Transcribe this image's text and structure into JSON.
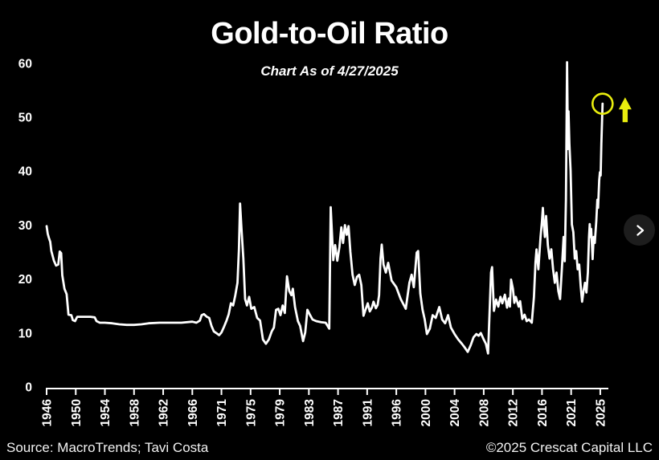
{
  "header": {
    "title": "Gold-to-Oil Ratio",
    "subtitle": "Chart As of 4/27/2025"
  },
  "footer": {
    "source": "Source: MacroTrends; Tavi Costa",
    "copyright": "©2025 Crescat Capital LLC"
  },
  "carousel": {
    "next_button": "chevron-right"
  },
  "colors": {
    "background": "#000000",
    "line": "#ffffff",
    "text": "#ffffff",
    "highlight": "#e9ed0e"
  },
  "chart_data": {
    "type": "line",
    "title": "Gold-to-Oil Ratio",
    "subtitle": "Chart As of 4/27/2025",
    "xlabel": "",
    "ylabel": "",
    "ylim": [
      0,
      60
    ],
    "y_ticks": [
      0,
      10,
      20,
      30,
      40,
      50,
      60
    ],
    "x_tick_labels": [
      "1946",
      "1950",
      "1954",
      "1958",
      "1962",
      "1966",
      "1971",
      "1975",
      "1979",
      "1983",
      "1987",
      "1991",
      "1996",
      "2000",
      "2004",
      "2008",
      "2012",
      "2016",
      "2021",
      "2025"
    ],
    "x_tick_years": [
      1946,
      1950,
      1954,
      1958,
      1962,
      1966,
      1971,
      1975,
      1979,
      1983,
      1987,
      1991,
      1996,
      2000,
      2004,
      2008,
      2012,
      2016,
      2021,
      2025
    ],
    "grid": false,
    "legend": null,
    "line_color": "#ffffff",
    "annotation": {
      "circled_last_point": true,
      "up_arrow": true,
      "color": "#e9ed0e",
      "last_value": 52.5,
      "as_of": "4/27/2025"
    },
    "series": [
      {
        "name": "gold-to-oil-ratio",
        "points": [
          [
            1946.0,
            29.8
          ],
          [
            1946.15,
            28.4
          ],
          [
            1946.3,
            27.7
          ],
          [
            1946.5,
            26.9
          ],
          [
            1946.65,
            25.2
          ],
          [
            1947.0,
            23.4
          ],
          [
            1947.3,
            22.5
          ],
          [
            1947.6,
            22.7
          ],
          [
            1947.8,
            25.1
          ],
          [
            1948.0,
            24.8
          ],
          [
            1948.15,
            20.7
          ],
          [
            1948.45,
            18.2
          ],
          [
            1948.75,
            17.2
          ],
          [
            1949.0,
            13.4
          ],
          [
            1949.4,
            13.3
          ],
          [
            1949.6,
            12.4
          ],
          [
            1949.9,
            12.2
          ],
          [
            1950.2,
            13.0
          ],
          [
            1950.7,
            13.0
          ],
          [
            1951.3,
            13.0
          ],
          [
            1952.0,
            13.0
          ],
          [
            1952.6,
            12.9
          ],
          [
            1952.85,
            12.2
          ],
          [
            1953.3,
            11.9
          ],
          [
            1954.0,
            11.9
          ],
          [
            1955.0,
            11.8
          ],
          [
            1956.0,
            11.6
          ],
          [
            1957.0,
            11.5
          ],
          [
            1958.0,
            11.5
          ],
          [
            1959.0,
            11.6
          ],
          [
            1960.0,
            11.8
          ],
          [
            1961.5,
            11.9
          ],
          [
            1963.0,
            11.9
          ],
          [
            1964.5,
            11.9
          ],
          [
            1966.0,
            12.1
          ],
          [
            1966.7,
            11.9
          ],
          [
            1967.3,
            12.3
          ],
          [
            1967.6,
            13.3
          ],
          [
            1968.0,
            13.5
          ],
          [
            1968.5,
            13.0
          ],
          [
            1968.9,
            12.8
          ],
          [
            1969.3,
            11.3
          ],
          [
            1969.7,
            10.3
          ],
          [
            1970.1,
            10.0
          ],
          [
            1970.6,
            9.6
          ],
          [
            1971.0,
            10.1
          ],
          [
            1971.3,
            11.0
          ],
          [
            1971.7,
            12.3
          ],
          [
            1972.0,
            13.5
          ],
          [
            1972.3,
            15.5
          ],
          [
            1972.6,
            15.1
          ],
          [
            1972.9,
            17.0
          ],
          [
            1973.2,
            19.3
          ],
          [
            1973.4,
            25.5
          ],
          [
            1973.55,
            34.0
          ],
          [
            1973.75,
            29.3
          ],
          [
            1974.0,
            23.8
          ],
          [
            1974.25,
            16.3
          ],
          [
            1974.5,
            15.1
          ],
          [
            1974.8,
            16.7
          ],
          [
            1975.1,
            14.5
          ],
          [
            1975.5,
            14.8
          ],
          [
            1975.9,
            12.8
          ],
          [
            1976.3,
            12.3
          ],
          [
            1976.7,
            8.8
          ],
          [
            1977.1,
            8.0
          ],
          [
            1977.5,
            8.8
          ],
          [
            1977.9,
            10.3
          ],
          [
            1978.2,
            11.0
          ],
          [
            1978.5,
            14.3
          ],
          [
            1978.8,
            14.5
          ],
          [
            1979.1,
            13.3
          ],
          [
            1979.4,
            15.1
          ],
          [
            1979.7,
            13.7
          ],
          [
            1980.0,
            20.5
          ],
          [
            1980.3,
            17.8
          ],
          [
            1980.6,
            17.0
          ],
          [
            1980.8,
            18.2
          ],
          [
            1981.1,
            14.8
          ],
          [
            1981.5,
            12.2
          ],
          [
            1981.8,
            11.3
          ],
          [
            1982.2,
            8.5
          ],
          [
            1982.5,
            10.1
          ],
          [
            1982.8,
            14.3
          ],
          [
            1983.1,
            13.5
          ],
          [
            1983.5,
            12.5
          ],
          [
            1984.0,
            12.2
          ],
          [
            1984.7,
            12.0
          ],
          [
            1985.3,
            11.9
          ],
          [
            1985.8,
            10.8
          ],
          [
            1986.0,
            33.3
          ],
          [
            1986.35,
            23.5
          ],
          [
            1986.6,
            26.3
          ],
          [
            1986.9,
            23.4
          ],
          [
            1987.2,
            26.0
          ],
          [
            1987.45,
            29.6
          ],
          [
            1987.7,
            26.7
          ],
          [
            1987.95,
            30.0
          ],
          [
            1988.2,
            28.2
          ],
          [
            1988.45,
            29.8
          ],
          [
            1988.7,
            25.0
          ],
          [
            1989.0,
            20.8
          ],
          [
            1989.3,
            18.9
          ],
          [
            1989.6,
            20.4
          ],
          [
            1989.9,
            20.8
          ],
          [
            1990.2,
            18.9
          ],
          [
            1990.5,
            13.2
          ],
          [
            1990.8,
            14.4
          ],
          [
            1991.1,
            15.5
          ],
          [
            1991.45,
            14.0
          ],
          [
            1991.8,
            14.7
          ],
          [
            1992.1,
            15.8
          ],
          [
            1992.5,
            14.6
          ],
          [
            1992.8,
            15.2
          ],
          [
            1993.05,
            17.0
          ],
          [
            1993.3,
            23.8
          ],
          [
            1993.5,
            26.4
          ],
          [
            1993.8,
            22.7
          ],
          [
            1994.2,
            21.2
          ],
          [
            1994.6,
            23.0
          ],
          [
            1995.2,
            19.7
          ],
          [
            1996.0,
            18.5
          ],
          [
            1996.6,
            16.3
          ],
          [
            1997.3,
            14.5
          ],
          [
            1997.8,
            19.3
          ],
          [
            1998.1,
            20.8
          ],
          [
            1998.4,
            18.5
          ],
          [
            1998.8,
            24.9
          ],
          [
            1999.0,
            25.2
          ],
          [
            1999.3,
            17.3
          ],
          [
            1999.6,
            14.3
          ],
          [
            1999.9,
            12.5
          ],
          [
            2000.2,
            9.8
          ],
          [
            2000.6,
            10.8
          ],
          [
            2001.0,
            13.3
          ],
          [
            2001.4,
            12.8
          ],
          [
            2001.9,
            14.8
          ],
          [
            2002.3,
            12.5
          ],
          [
            2002.7,
            11.8
          ],
          [
            2003.1,
            13.3
          ],
          [
            2003.5,
            11.0
          ],
          [
            2004.0,
            9.8
          ],
          [
            2004.5,
            8.8
          ],
          [
            2005.0,
            8.0
          ],
          [
            2005.4,
            7.3
          ],
          [
            2005.8,
            6.5
          ],
          [
            2006.2,
            7.7
          ],
          [
            2006.6,
            9.2
          ],
          [
            2007.0,
            9.8
          ],
          [
            2007.3,
            9.5
          ],
          [
            2007.6,
            10.0
          ],
          [
            2008.0,
            8.8
          ],
          [
            2008.3,
            8.0
          ],
          [
            2008.6,
            6.2
          ],
          [
            2009.0,
            21.2
          ],
          [
            2009.15,
            22.2
          ],
          [
            2009.4,
            14.1
          ],
          [
            2009.7,
            16.2
          ],
          [
            2010.0,
            14.9
          ],
          [
            2010.3,
            16.7
          ],
          [
            2010.55,
            15.5
          ],
          [
            2010.9,
            17.1
          ],
          [
            2011.2,
            14.7
          ],
          [
            2011.45,
            16.4
          ],
          [
            2011.6,
            14.9
          ],
          [
            2011.75,
            19.9
          ],
          [
            2012.0,
            18.2
          ],
          [
            2012.2,
            15.6
          ],
          [
            2012.4,
            16.7
          ],
          [
            2012.8,
            14.9
          ],
          [
            2013.0,
            15.9
          ],
          [
            2013.3,
            12.6
          ],
          [
            2013.6,
            13.4
          ],
          [
            2013.9,
            12.2
          ],
          [
            2014.2,
            12.5
          ],
          [
            2014.6,
            11.9
          ],
          [
            2014.9,
            16.7
          ],
          [
            2015.1,
            23.1
          ],
          [
            2015.25,
            25.5
          ],
          [
            2015.5,
            21.8
          ],
          [
            2015.8,
            27.8
          ],
          [
            2016.0,
            30.8
          ],
          [
            2016.15,
            33.2
          ],
          [
            2016.3,
            30.2
          ],
          [
            2016.5,
            27.8
          ],
          [
            2016.7,
            31.7
          ],
          [
            2017.0,
            26.3
          ],
          [
            2017.3,
            23.8
          ],
          [
            2017.6,
            25.5
          ],
          [
            2017.9,
            21.8
          ],
          [
            2018.2,
            19.3
          ],
          [
            2018.5,
            21.2
          ],
          [
            2018.8,
            17.8
          ],
          [
            2019.1,
            16.3
          ],
          [
            2019.4,
            21.8
          ],
          [
            2019.7,
            27.8
          ],
          [
            2019.9,
            23.3
          ],
          [
            2020.1,
            34.7
          ],
          [
            2020.3,
            60.2
          ],
          [
            2020.45,
            44.1
          ],
          [
            2020.55,
            51.1
          ],
          [
            2020.7,
            45.1
          ],
          [
            2020.9,
            40.1
          ],
          [
            2021.1,
            30.1
          ],
          [
            2021.3,
            28.7
          ],
          [
            2021.5,
            23.8
          ],
          [
            2021.7,
            25.2
          ],
          [
            2021.9,
            21.8
          ],
          [
            2022.1,
            22.7
          ],
          [
            2022.3,
            18.8
          ],
          [
            2022.5,
            15.8
          ],
          [
            2022.7,
            17.8
          ],
          [
            2022.9,
            19.3
          ],
          [
            2023.1,
            17.5
          ],
          [
            2023.3,
            21.2
          ],
          [
            2023.45,
            27.8
          ],
          [
            2023.55,
            30.2
          ],
          [
            2023.65,
            27.8
          ],
          [
            2023.75,
            29.3
          ],
          [
            2023.95,
            23.7
          ],
          [
            2024.1,
            27.8
          ],
          [
            2024.25,
            26.7
          ],
          [
            2024.45,
            30.8
          ],
          [
            2024.6,
            34.7
          ],
          [
            2024.7,
            33.2
          ],
          [
            2024.85,
            38.3
          ],
          [
            2024.95,
            39.8
          ],
          [
            2025.05,
            39.2
          ],
          [
            2025.15,
            45.2
          ],
          [
            2025.32,
            52.5
          ]
        ]
      }
    ]
  }
}
